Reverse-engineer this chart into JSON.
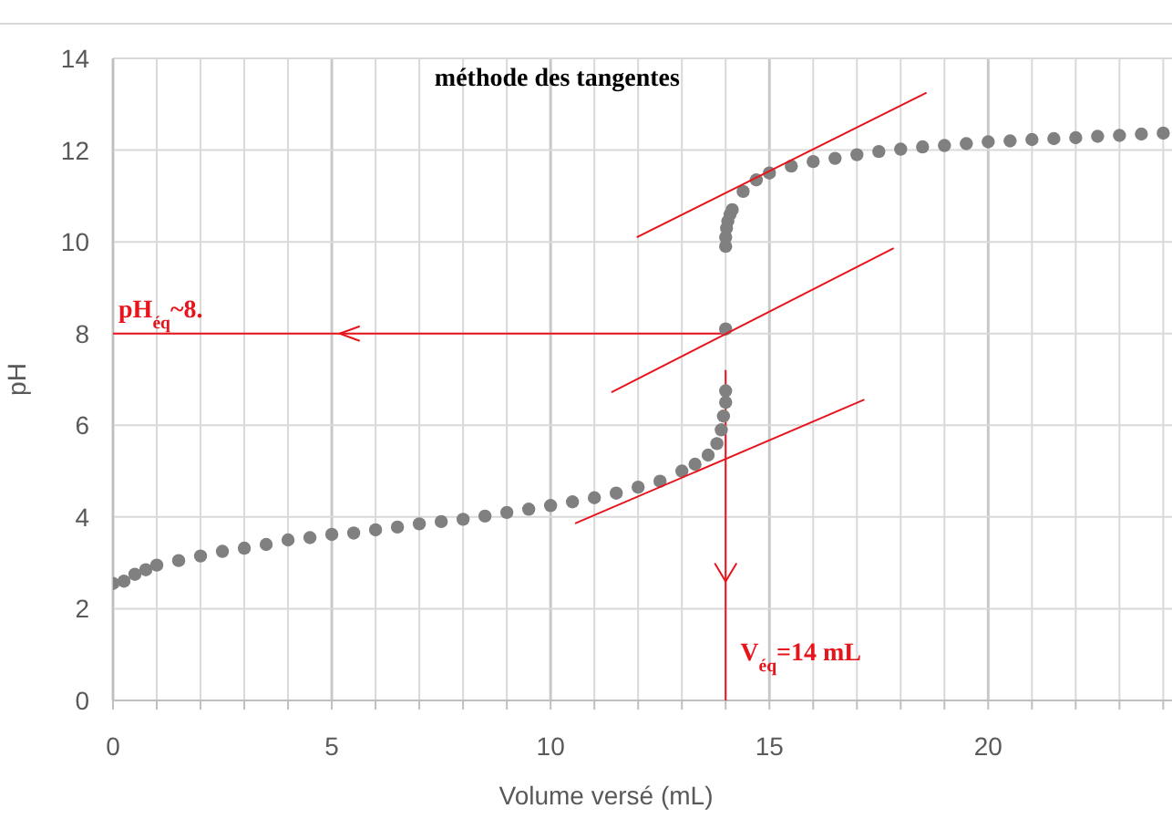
{
  "chart_data": {
    "type": "scatter",
    "title": "méthode des tangentes",
    "xlabel": "Volume versé (mL)",
    "ylabel": "pH",
    "xlim": [
      0,
      24.2
    ],
    "ylim": [
      0,
      14
    ],
    "xticks": [
      0,
      {
        "value": 1,
        "label": null
      },
      {
        "value": 2,
        "label": null
      },
      {
        "value": 3,
        "label": null
      },
      {
        "value": 4,
        "label": null
      },
      5,
      {
        "value": 6,
        "label": null
      },
      {
        "value": 7,
        "label": null
      },
      {
        "value": 8,
        "label": null
      },
      {
        "value": 9,
        "label": null
      },
      10,
      {
        "value": 11,
        "label": null
      },
      {
        "value": 12,
        "label": null
      },
      {
        "value": 13,
        "label": null
      },
      {
        "value": 14,
        "label": null
      },
      15,
      {
        "value": 16,
        "label": null
      },
      {
        "value": 17,
        "label": null
      },
      {
        "value": 18,
        "label": null
      },
      {
        "value": 19,
        "label": null
      },
      20,
      {
        "value": 21,
        "label": null
      },
      {
        "value": 22,
        "label": null
      },
      {
        "value": 23,
        "label": null
      },
      {
        "value": 24,
        "label": null
      }
    ],
    "yticks": [
      0,
      2,
      4,
      6,
      8,
      10,
      12,
      14
    ],
    "grid": true,
    "marker": "circle",
    "series": [
      {
        "color": "#808080",
        "x": [
          0,
          0.25,
          0.5,
          0.75,
          1,
          1.5,
          2,
          2.5,
          3,
          3.5,
          4,
          4.5,
          5,
          5.5,
          6,
          6.5,
          7,
          7.5,
          8,
          8.5,
          9,
          9.5,
          10,
          10.5,
          11,
          11.5,
          12,
          12.5,
          13,
          13.3,
          13.6,
          13.8,
          13.9,
          13.95,
          14,
          14,
          14,
          14,
          14,
          14.02,
          14.05,
          14.1,
          14.15,
          14.4,
          14.7,
          15,
          15.5,
          16,
          16.5,
          17,
          17.5,
          18,
          18.5,
          19,
          19.5,
          20,
          20.5,
          21,
          21.5,
          22,
          22.5,
          23,
          23.5,
          24
        ],
        "values": [
          2.55,
          2.6,
          2.75,
          2.85,
          2.95,
          3.05,
          3.15,
          3.25,
          3.32,
          3.4,
          3.5,
          3.55,
          3.62,
          3.65,
          3.72,
          3.78,
          3.85,
          3.9,
          3.95,
          4.02,
          4.1,
          4.17,
          4.25,
          4.33,
          4.42,
          4.52,
          4.65,
          4.78,
          5.0,
          5.15,
          5.35,
          5.6,
          5.9,
          6.2,
          6.5,
          6.75,
          8.1,
          9.9,
          10.1,
          10.3,
          10.45,
          10.6,
          10.7,
          11.1,
          11.35,
          11.5,
          11.65,
          11.75,
          11.82,
          11.9,
          11.97,
          12.02,
          12.07,
          12.1,
          12.14,
          12.18,
          12.2,
          12.23,
          12.25,
          12.27,
          12.3,
          12.32,
          12.35,
          12.37
        ]
      },
      {
        "type": "line",
        "color": "#e8141c",
        "marker": "none",
        "x": [
          10.56,
          17.17
        ],
        "values": [
          3.86,
          6.56
        ]
      },
      {
        "type": "line",
        "color": "#e8141c",
        "marker": "none",
        "x": [
          11.39,
          17.84
        ],
        "values": [
          6.72,
          9.86
        ]
      },
      {
        "type": "line",
        "color": "#e8141c",
        "marker": "none",
        "x": [
          11.97,
          18.59
        ],
        "values": [
          10.1,
          13.25
        ]
      }
    ],
    "ref_lines": [
      {
        "axis": "y",
        "value": 8,
        "label": "pH$_{éq}$~8.",
        "color": "#e8141c"
      },
      {
        "axis": "x",
        "value": 14,
        "label": "V$_{éq}$=14 mL",
        "color": "#e8141c"
      }
    ]
  }
}
